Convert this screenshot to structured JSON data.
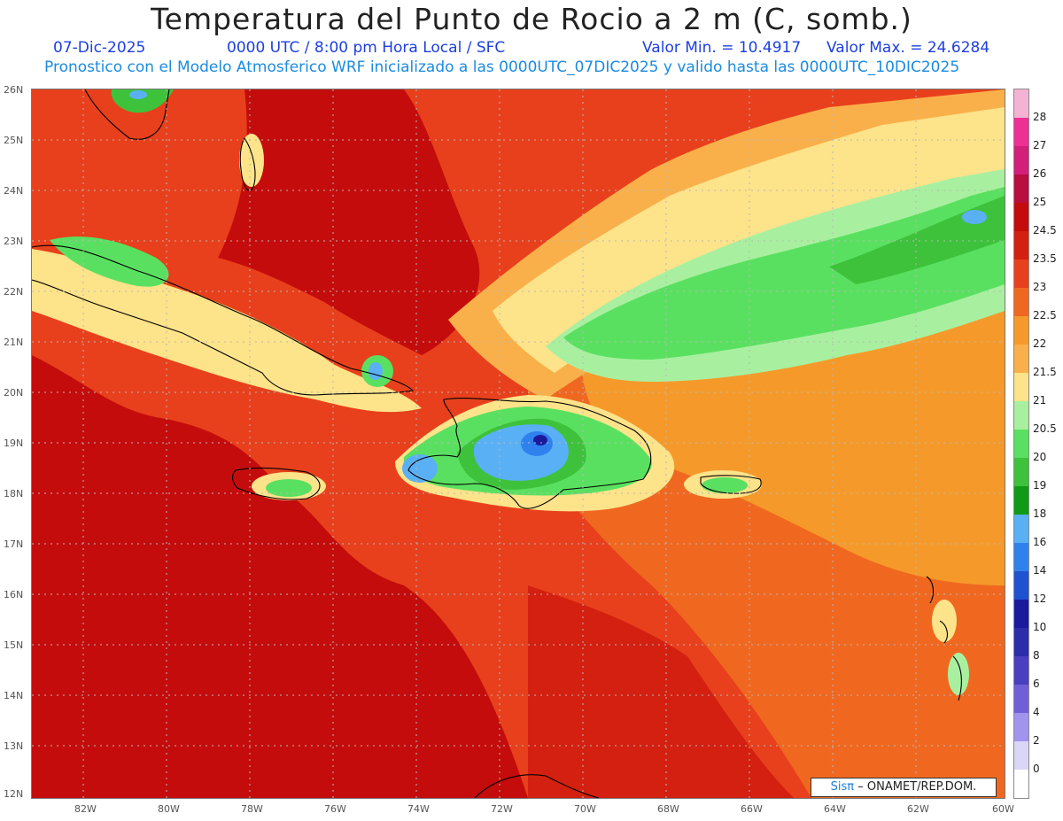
{
  "title": "Temperatura del Punto de Rocio a 2 m (C, somb.)",
  "date": "07-Dic-2025",
  "time_info": "0000 UTC / 8:00 pm Hora Local / SFC",
  "valor_min": "Valor Min. = 10.4917",
  "valor_max": "Valor Max. = 24.6284",
  "forecast_line": "Pronostico con el Modelo Atmosferico WRF inicializado a las 0000UTC_07DIC2025 y valido hasta las 0000UTC_10DIC2025",
  "credit_sis": "Sisπ",
  "credit_org": "– ONAMET/REP.DOM.",
  "lat_labels": [
    "26N",
    "25N",
    "24N",
    "23N",
    "22N",
    "21N",
    "20N",
    "19N",
    "18N",
    "17N",
    "16N",
    "15N",
    "14N",
    "13N",
    "12N"
  ],
  "lon_labels": [
    "82W",
    "80W",
    "78W",
    "76W",
    "74W",
    "72W",
    "70W",
    "68W",
    "66W",
    "64W",
    "62W",
    "60W"
  ],
  "legend": {
    "labels": [
      "28",
      "27",
      "26",
      "25",
      "24.5",
      "23.5",
      "23",
      "22.5",
      "22",
      "21.5",
      "21",
      "20.5",
      "20",
      "19",
      "18",
      "16",
      "14",
      "12",
      "10",
      "8",
      "6",
      "4",
      "2",
      "0"
    ],
    "colors": [
      "#f5b3d4",
      "#ee2f95",
      "#d11f7a",
      "#b80e40",
      "#c40c0c",
      "#d42010",
      "#e8401c",
      "#f06820",
      "#f59a2a",
      "#fab04a",
      "#fde38a",
      "#a8f0a0",
      "#5ae060",
      "#3ec23c",
      "#119a16",
      "#5ab0f5",
      "#2f82ee",
      "#1f52d0",
      "#1b1a9e",
      "#2b2daa",
      "#4a3fc0",
      "#7060d8",
      "#a094ee",
      "#dad6f8",
      "#ffffff"
    ]
  },
  "colors": {
    "land_outline": "#000000",
    "grid": "#b8b8b8"
  }
}
